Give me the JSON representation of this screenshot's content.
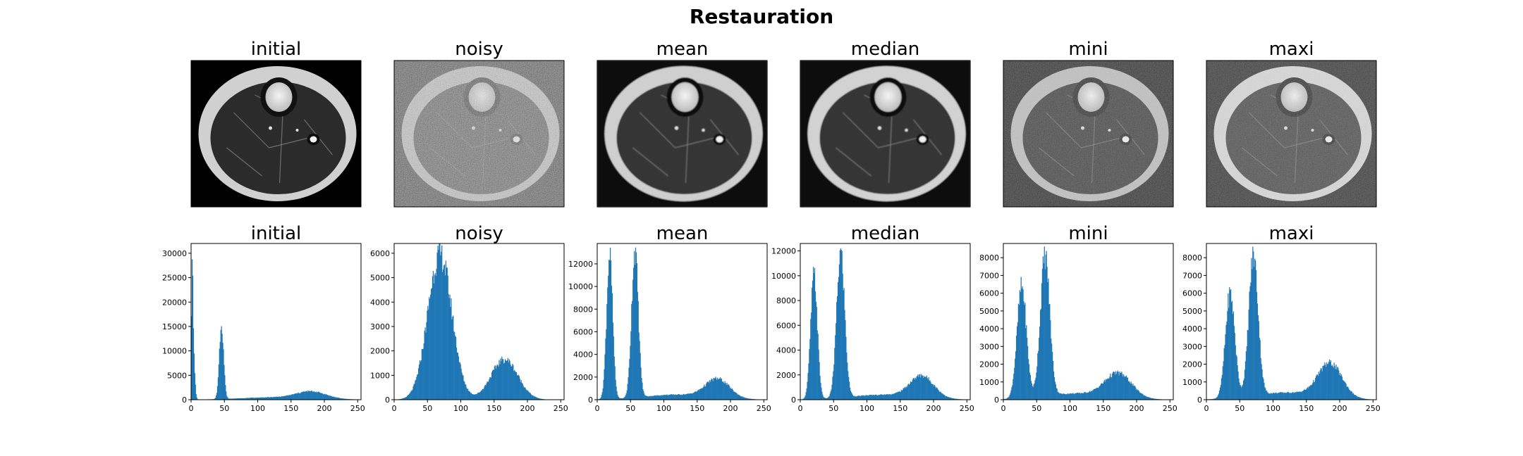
{
  "figure": {
    "title": "Restauration"
  },
  "image_panels": [
    {
      "title": "initial",
      "variant": "initial"
    },
    {
      "title": "noisy",
      "variant": "noisy"
    },
    {
      "title": "mean",
      "variant": "mean"
    },
    {
      "title": "median",
      "variant": "median"
    },
    {
      "title": "mini",
      "variant": "mini"
    },
    {
      "title": "maxi",
      "variant": "maxi"
    }
  ],
  "chart_data": [
    {
      "type": "bar",
      "title": "initial",
      "xlim": [
        0,
        255
      ],
      "ylim": [
        0,
        32000
      ],
      "xticks": [
        0,
        50,
        100,
        150,
        200,
        250
      ],
      "yticks": [
        0,
        5000,
        10000,
        15000,
        20000,
        25000,
        30000
      ],
      "color": "#1f77b4",
      "peaks": [
        {
          "center": 1,
          "height": 22000,
          "width": 1.2
        },
        {
          "center": 3,
          "height": 9000,
          "width": 2.0
        },
        {
          "center": 45,
          "height": 15500,
          "width": 3.2
        },
        {
          "center": 180,
          "height": 1400,
          "width": 22
        },
        {
          "center": 130,
          "height": 500,
          "width": 55
        }
      ],
      "spikes": [
        {
          "x": 1,
          "y": 31200
        },
        {
          "x": 45,
          "y": 16200
        }
      ]
    },
    {
      "type": "bar",
      "title": "noisy",
      "xlim": [
        0,
        255
      ],
      "ylim": [
        0,
        6400
      ],
      "xticks": [
        0,
        50,
        100,
        150,
        200,
        250
      ],
      "yticks": [
        0,
        1000,
        2000,
        3000,
        4000,
        5000,
        6000
      ],
      "color": "#1f77b4",
      "peaks": [
        {
          "center": 68,
          "height": 5950,
          "width": 18
        },
        {
          "center": 165,
          "height": 1650,
          "width": 20
        }
      ],
      "spikes": []
    },
    {
      "type": "bar",
      "title": "mean",
      "xlim": [
        0,
        255
      ],
      "ylim": [
        0,
        13800
      ],
      "xticks": [
        0,
        50,
        100,
        150,
        200,
        250
      ],
      "yticks": [
        0,
        2000,
        4000,
        6000,
        8000,
        10000,
        12000
      ],
      "color": "#1f77b4",
      "peaks": [
        {
          "center": 18,
          "height": 12700,
          "width": 4.5
        },
        {
          "center": 56,
          "height": 13000,
          "width": 5
        },
        {
          "center": 180,
          "height": 1650,
          "width": 18
        },
        {
          "center": 120,
          "height": 450,
          "width": 50
        }
      ],
      "spikes": []
    },
    {
      "type": "bar",
      "title": "median",
      "xlim": [
        0,
        255
      ],
      "ylim": [
        0,
        12600
      ],
      "xticks": [
        0,
        50,
        100,
        150,
        200,
        250
      ],
      "yticks": [
        0,
        2000,
        4000,
        6000,
        8000,
        10000,
        12000
      ],
      "color": "#1f77b4",
      "peaks": [
        {
          "center": 20,
          "height": 10000,
          "width": 5
        },
        {
          "center": 60,
          "height": 11700,
          "width": 6
        },
        {
          "center": 182,
          "height": 1750,
          "width": 18
        },
        {
          "center": 125,
          "height": 400,
          "width": 50
        }
      ],
      "spikes": []
    },
    {
      "type": "bar",
      "title": "mini",
      "xlim": [
        0,
        255
      ],
      "ylim": [
        0,
        8800
      ],
      "xticks": [
        0,
        50,
        100,
        150,
        200,
        250
      ],
      "yticks": [
        0,
        1000,
        2000,
        3000,
        4000,
        5000,
        6000,
        7000,
        8000
      ],
      "color": "#1f77b4",
      "peaks": [
        {
          "center": 27,
          "height": 6300,
          "width": 7
        },
        {
          "center": 62,
          "height": 7900,
          "width": 7
        },
        {
          "center": 172,
          "height": 1350,
          "width": 20
        },
        {
          "center": 110,
          "height": 350,
          "width": 50
        }
      ],
      "spikes": []
    },
    {
      "type": "bar",
      "title": "maxi",
      "xlim": [
        0,
        255
      ],
      "ylim": [
        0,
        8800
      ],
      "xticks": [
        0,
        50,
        100,
        150,
        200,
        250
      ],
      "yticks": [
        0,
        1000,
        2000,
        3000,
        4000,
        5000,
        6000,
        7000,
        8000
      ],
      "color": "#1f77b4",
      "peaks": [
        {
          "center": 35,
          "height": 5900,
          "width": 7
        },
        {
          "center": 70,
          "height": 7900,
          "width": 7
        },
        {
          "center": 185,
          "height": 1900,
          "width": 18
        },
        {
          "center": 120,
          "height": 400,
          "width": 50
        }
      ],
      "spikes": []
    }
  ]
}
